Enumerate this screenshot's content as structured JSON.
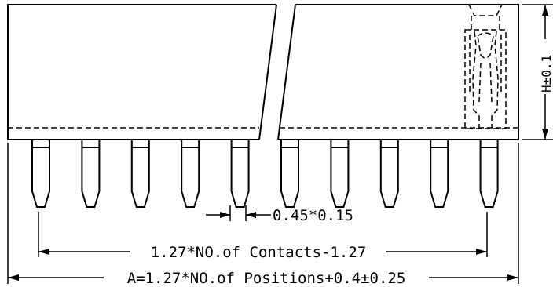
{
  "dimensions": {
    "pin_tip": "0.45*0.15",
    "contacts_pitch": "1.27*NO.of Contacts-1.27",
    "overall_length": "A=1.27*NO.of Positions+0.4±0.25",
    "height": "H±0.1"
  },
  "drawing": {
    "pin_count_visible": 10,
    "view": "side view, broken connector housing"
  }
}
